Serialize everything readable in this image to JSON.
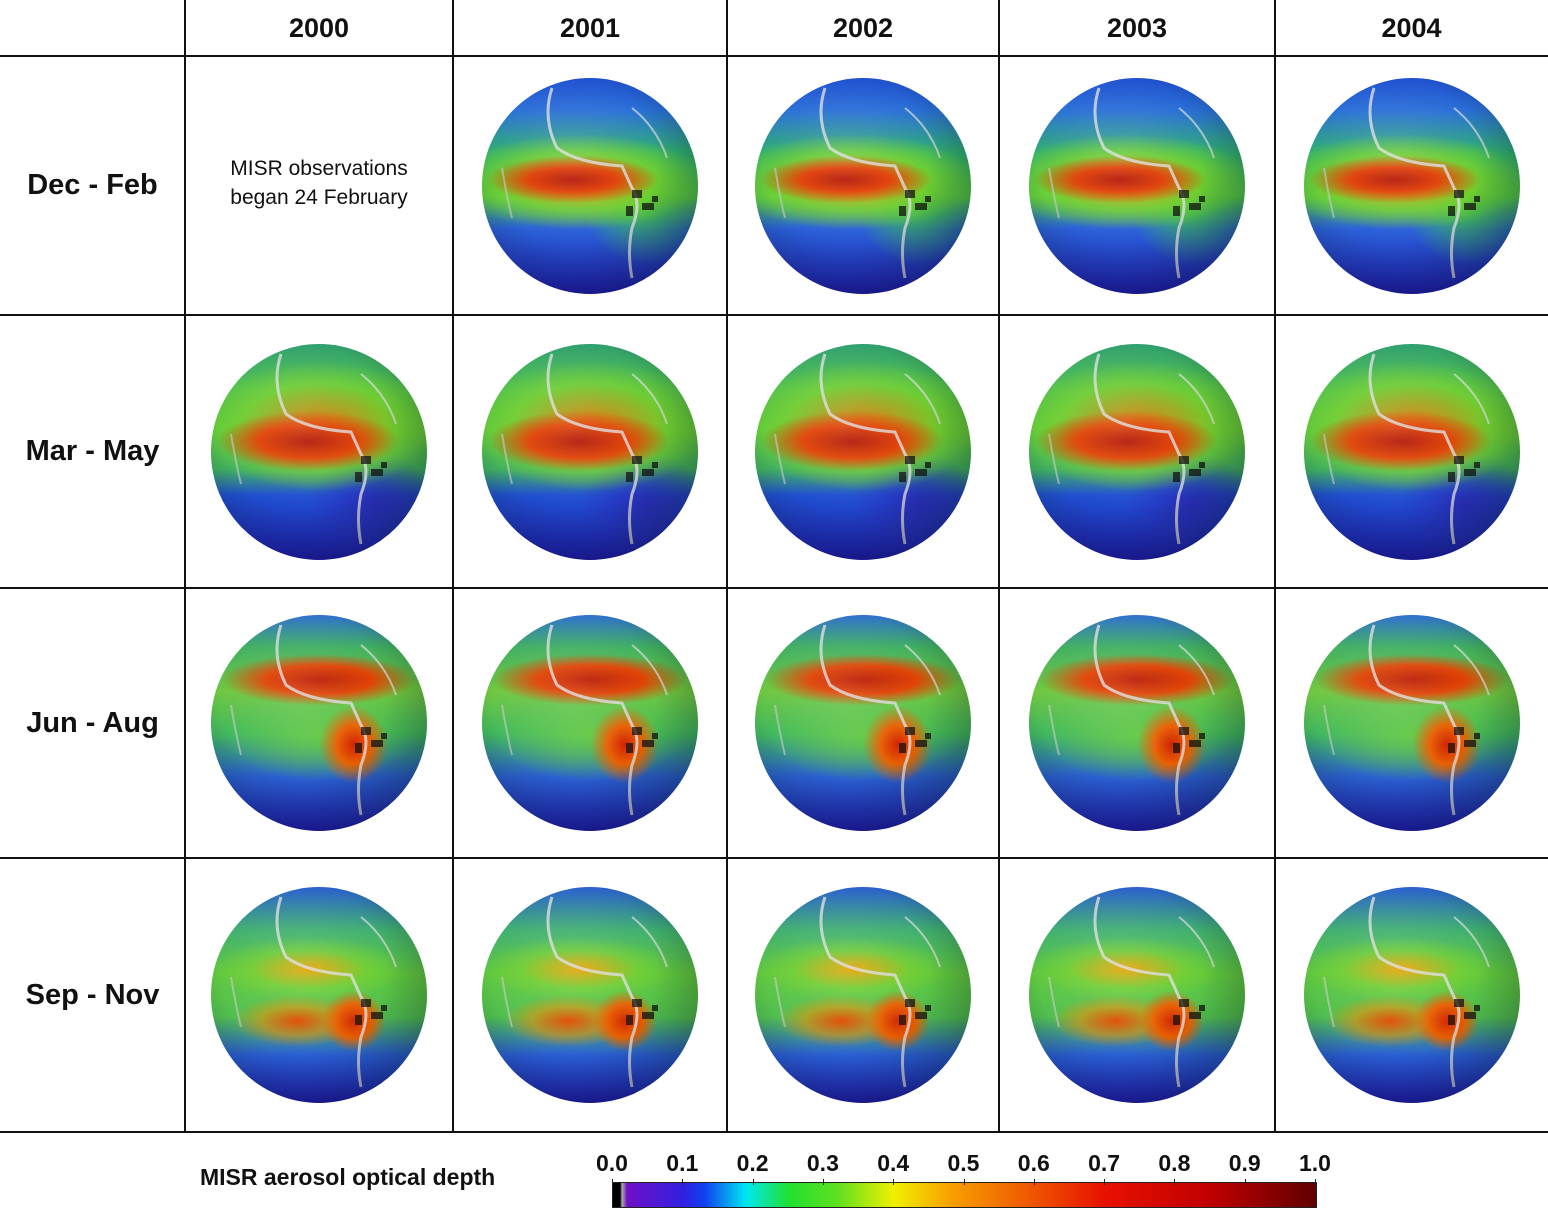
{
  "years": [
    "2000",
    "2001",
    "2002",
    "2003",
    "2004"
  ],
  "seasons": [
    "Dec - Feb",
    "Mar - May",
    "Jun - Aug",
    "Sep - Nov"
  ],
  "cells": [
    [
      false,
      true,
      true,
      true,
      true
    ],
    [
      true,
      true,
      true,
      true,
      true
    ],
    [
      true,
      true,
      true,
      true,
      true
    ],
    [
      true,
      true,
      true,
      true,
      true
    ]
  ],
  "missing_note": {
    "line1": "MISR observations",
    "line2": "began 24 February"
  },
  "colorbar": {
    "label": "MISR aerosol optical depth",
    "ticks": [
      "0.0",
      "0.1",
      "0.2",
      "0.3",
      "0.4",
      "0.5",
      "0.6",
      "0.7",
      "0.8",
      "0.9",
      "1.0"
    ],
    "range": [
      0.0,
      1.0
    ],
    "colors": [
      "#000000",
      "#7010c8",
      "#1040f0",
      "#00e8f0",
      "#20e030",
      "#f0f000",
      "#f8a000",
      "#f06000",
      "#e81000",
      "#c00000",
      "#600000"
    ]
  }
}
